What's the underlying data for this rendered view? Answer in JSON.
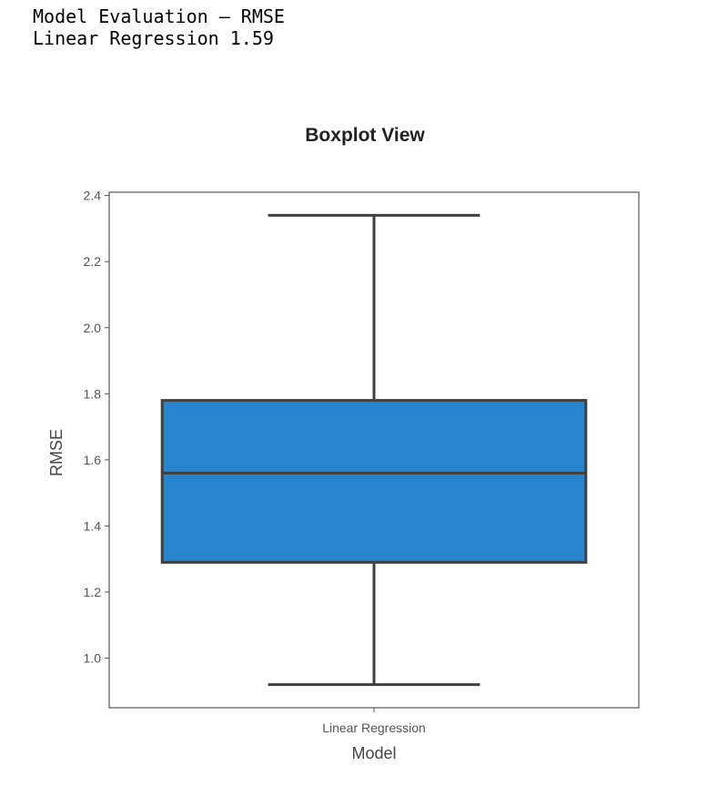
{
  "output": {
    "line1": "Model Evaluation – RMSE",
    "line2": "Linear Regression 1.59"
  },
  "colors": {
    "box_fill": "#2785CE",
    "stroke": "#404040",
    "frame": "#555555",
    "text": "#333333",
    "tick_text": "#555555"
  },
  "chart_data": {
    "type": "boxplot",
    "title": "Boxplot View",
    "xlabel": "Model",
    "ylabel": "RMSE",
    "categories": [
      "Linear Regression"
    ],
    "boxes": [
      {
        "category": "Linear Regression",
        "whisker_low": 0.92,
        "q1": 1.29,
        "median": 1.56,
        "q3": 1.78,
        "whisker_high": 2.34
      }
    ],
    "ylim": [
      0.85,
      2.41
    ],
    "yticks": [
      1.0,
      1.2,
      1.4,
      1.6,
      1.8,
      2.0,
      2.2,
      2.4
    ],
    "ytick_labels": [
      "1.0",
      "1.2",
      "1.4",
      "1.6",
      "1.8",
      "2.0",
      "2.2",
      "2.4"
    ],
    "grid": false
  }
}
